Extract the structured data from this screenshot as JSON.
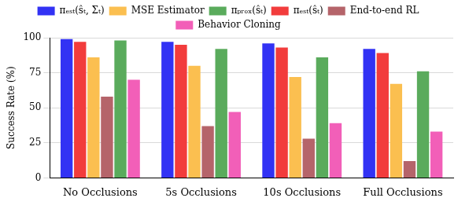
{
  "chart_data": {
    "type": "bar",
    "y_label": "Success Rate (%)",
    "categories": [
      "No Occlusions",
      "5s Occlusions",
      "10s Occlusions",
      "Full Occlusions"
    ],
    "series": [
      {
        "name": "πₑₛₜ(ŝₜ, Σₜ)",
        "color": "#3232f4",
        "values": [
          99,
          97,
          96,
          92
        ]
      },
      {
        "name": "πₑₛₜ(ŝₜ)",
        "color": "#f23c3c",
        "values": [
          97,
          95,
          93,
          89
        ]
      },
      {
        "name": "MSE Estimator",
        "color": "#fbbf50",
        "values": [
          86,
          80,
          72,
          67
        ]
      },
      {
        "name": "End-to-end RL",
        "color": "#b5646a",
        "values": [
          58,
          37,
          28,
          12
        ]
      },
      {
        "name": "πₚᵣₒₓ(ŝₜ)",
        "color": "#5aab5c",
        "values": [
          98,
          92,
          86,
          76
        ]
      },
      {
        "name": "Behavior Cloning",
        "color": "#f25fb8",
        "values": [
          70,
          47,
          39,
          33
        ]
      }
    ],
    "ylim": [
      0,
      100
    ],
    "yticks": [
      0,
      25,
      50,
      75,
      100
    ],
    "grid": true,
    "legend": "top"
  }
}
